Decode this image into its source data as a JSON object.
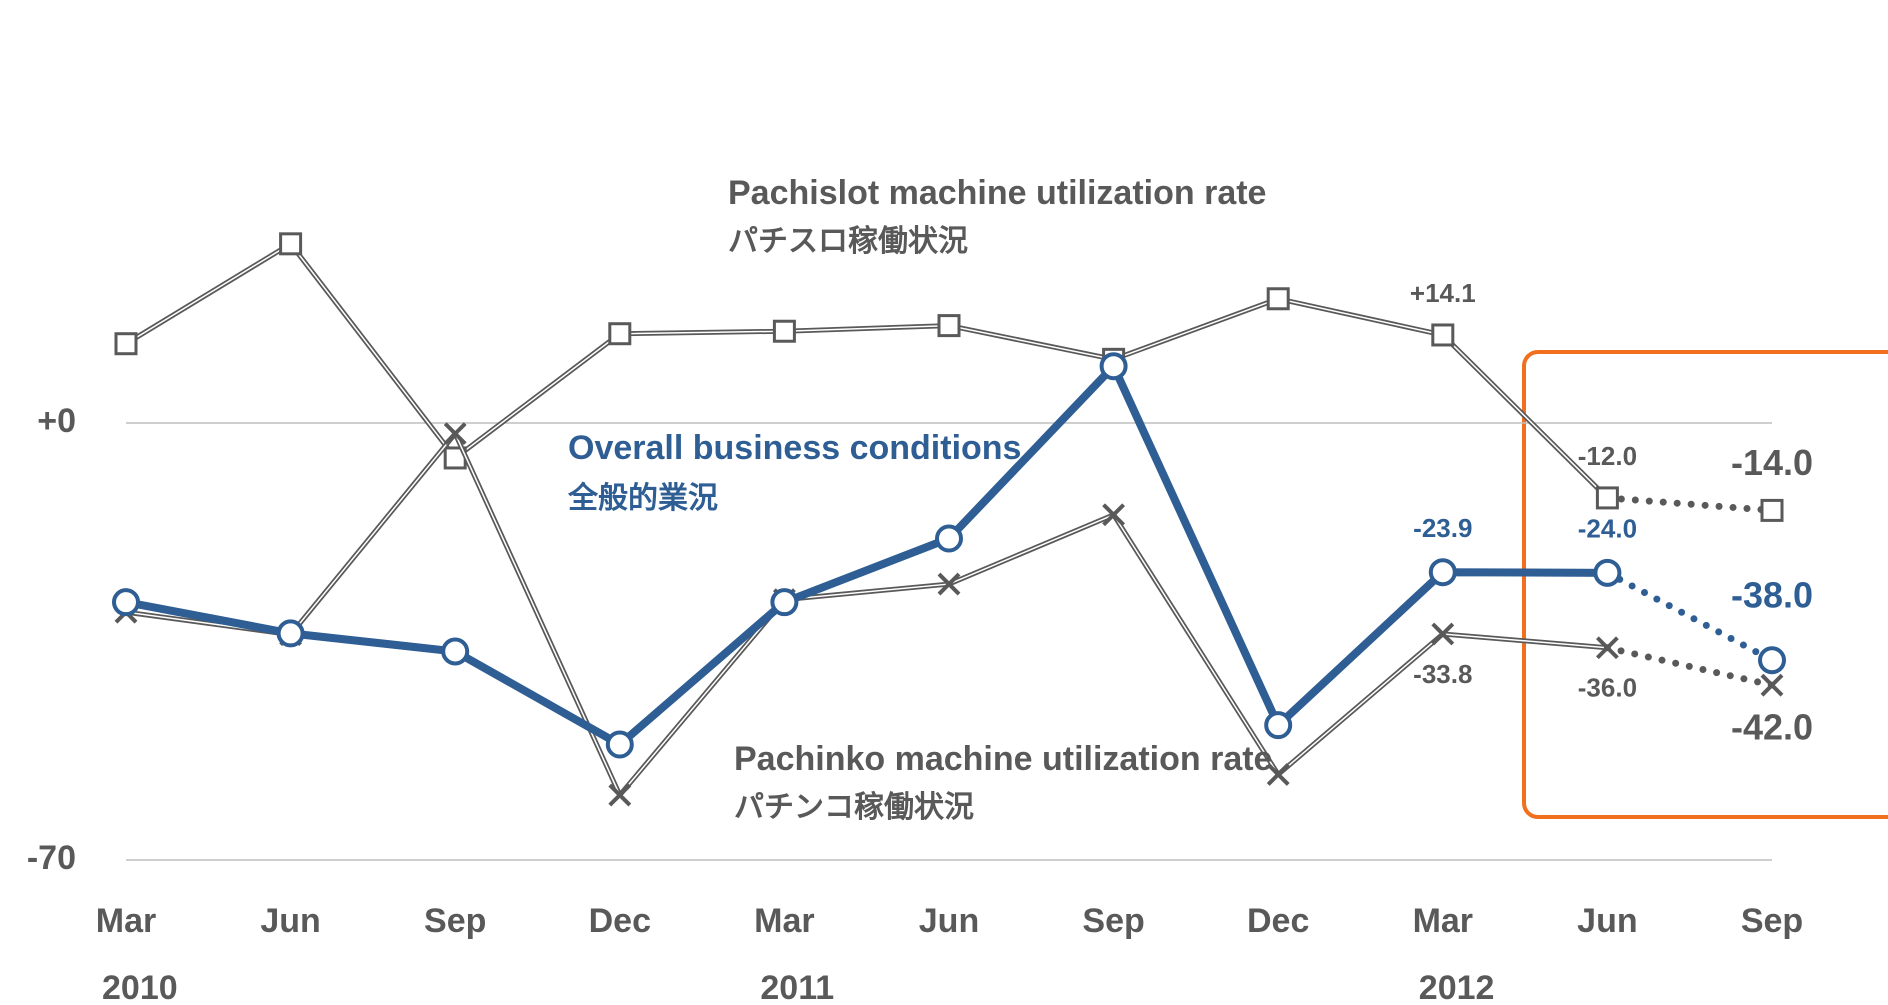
{
  "chart_data": {
    "type": "line",
    "categories": [
      "Mar",
      "Jun",
      "Sep",
      "Dec",
      "Mar",
      "Jun",
      "Sep",
      "Dec",
      "Mar",
      "Jun",
      "Sep"
    ],
    "years": [
      "2010",
      null,
      null,
      null,
      "2011",
      null,
      null,
      null,
      "2012",
      null,
      null
    ],
    "ylim": [
      -70,
      70
    ],
    "yticks": [
      {
        "value": 0,
        "label": "+0"
      },
      -70
    ],
    "grid": true,
    "forecast_start_index": 9,
    "series": [
      {
        "name": "Pachislot machine utilization rate",
        "name_ja": "パチスロ稼働状況",
        "color": "#595959",
        "marker": "square",
        "values": [
          12.7,
          28.7,
          -5.6,
          14.3,
          14.7,
          15.6,
          10.2,
          19.9,
          14.1,
          -12.0,
          -14.0
        ],
        "value_labels": [
          null,
          null,
          null,
          null,
          null,
          null,
          null,
          null,
          "+14.1",
          "-12.0",
          "-14.0"
        ]
      },
      {
        "name": "Pachinko machine utilization rate",
        "name_ja": "パチンコ稼働状況",
        "color": "#595959",
        "marker": "x",
        "values": [
          -30.3,
          -33.9,
          -1.7,
          -59.6,
          -28.3,
          -25.8,
          -14.7,
          -56.3,
          -33.8,
          -36.0,
          -42.0
        ],
        "value_labels": [
          null,
          null,
          null,
          null,
          null,
          null,
          null,
          null,
          "-33.8",
          "-36.0",
          "-42.0"
        ]
      },
      {
        "name": "Overall business conditions",
        "name_ja": "全般的業況",
        "color": "#2e5e94",
        "marker": "circle",
        "values": [
          -28.7,
          -33.7,
          -36.6,
          -51.5,
          -28.7,
          -18.5,
          9.1,
          -48.4,
          -23.9,
          -24.0,
          -38.0
        ],
        "value_labels": [
          null,
          null,
          null,
          null,
          null,
          null,
          null,
          null,
          "-23.9",
          "-24.0",
          "-38.0"
        ]
      }
    ]
  }
}
